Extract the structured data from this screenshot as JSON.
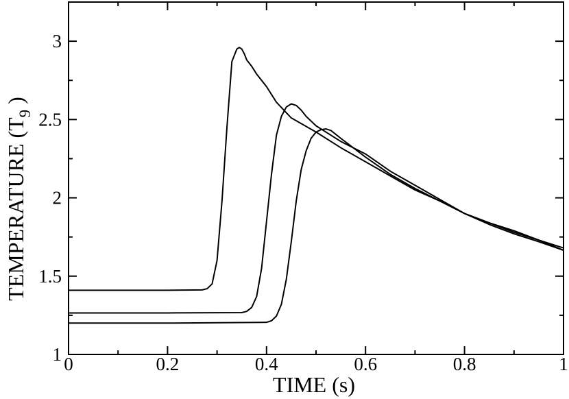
{
  "chart_data": {
    "type": "line",
    "xlabel": "TIME (s)",
    "ylabel": "TEMPERATURE (T",
    "ylabel_subscript": "9",
    "ylabel_suffix": " )",
    "xlim": [
      0,
      1
    ],
    "ylim": [
      1,
      3.25
    ],
    "x_ticks": [
      0,
      0.2,
      0.4,
      0.6,
      0.8,
      1
    ],
    "x_tick_labels": [
      "0",
      "0.2",
      "0.4",
      "0.6",
      "0.8",
      "1"
    ],
    "y_ticks": [
      1,
      1.5,
      2,
      2.5,
      3
    ],
    "y_tick_labels": [
      "1",
      "1.5",
      "2",
      "2.5",
      "3"
    ],
    "grid": false,
    "legend": "none",
    "series": [
      {
        "x": [
          0,
          0.2,
          0.27,
          0.28,
          0.29,
          0.3,
          0.31,
          0.32,
          0.33,
          0.34,
          0.345,
          0.35,
          0.355,
          0.36,
          0.37,
          0.38,
          0.4,
          0.42,
          0.45,
          0.5,
          0.55,
          0.6,
          0.65,
          0.7,
          0.75,
          0.8,
          0.85,
          0.9,
          0.95,
          1.0
        ],
        "y": [
          1.41,
          1.41,
          1.412,
          1.42,
          1.45,
          1.6,
          1.98,
          2.45,
          2.87,
          2.95,
          2.96,
          2.95,
          2.92,
          2.88,
          2.84,
          2.79,
          2.71,
          2.61,
          2.51,
          2.42,
          2.32,
          2.23,
          2.14,
          2.05,
          1.98,
          1.9,
          1.84,
          1.78,
          1.73,
          1.665
        ]
      },
      {
        "x": [
          0,
          0.2,
          0.35,
          0.36,
          0.37,
          0.38,
          0.39,
          0.4,
          0.41,
          0.42,
          0.43,
          0.44,
          0.45,
          0.46,
          0.47,
          0.48,
          0.5,
          0.55,
          0.6,
          0.65,
          0.7,
          0.75,
          0.8,
          0.85,
          0.9,
          0.95,
          1.0
        ],
        "y": [
          1.265,
          1.265,
          1.267,
          1.275,
          1.3,
          1.37,
          1.55,
          1.85,
          2.15,
          2.4,
          2.52,
          2.58,
          2.6,
          2.59,
          2.56,
          2.52,
          2.46,
          2.36,
          2.28,
          2.17,
          2.08,
          1.99,
          1.9,
          1.83,
          1.77,
          1.72,
          1.665
        ]
      },
      {
        "x": [
          0,
          0.2,
          0.4,
          0.41,
          0.42,
          0.43,
          0.44,
          0.45,
          0.46,
          0.47,
          0.48,
          0.49,
          0.5,
          0.51,
          0.52,
          0.53,
          0.55,
          0.6,
          0.65,
          0.7,
          0.75,
          0.8,
          0.85,
          0.9,
          0.95,
          1.0
        ],
        "y": [
          1.2,
          1.2,
          1.205,
          1.215,
          1.245,
          1.32,
          1.48,
          1.72,
          1.98,
          2.18,
          2.3,
          2.38,
          2.42,
          2.435,
          2.44,
          2.43,
          2.38,
          2.26,
          2.15,
          2.06,
          1.98,
          1.9,
          1.84,
          1.79,
          1.73,
          1.68
        ]
      }
    ]
  }
}
